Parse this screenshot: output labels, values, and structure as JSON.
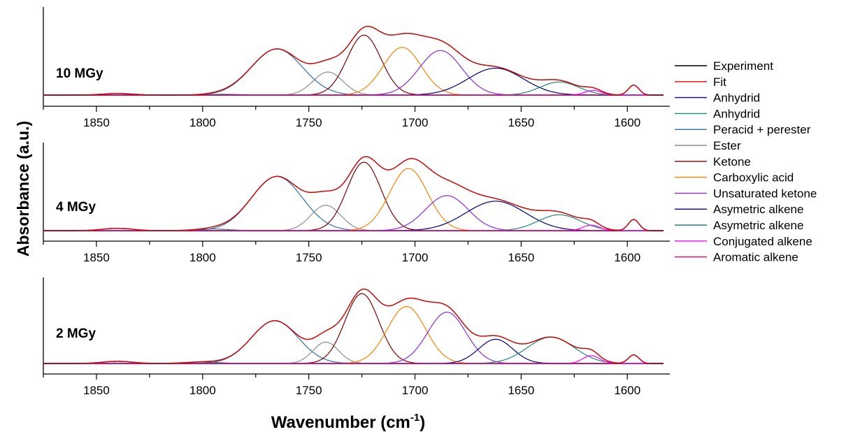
{
  "chart_data": {
    "type": "line",
    "xlabel": "Wavenumber (cm",
    "xlabel_sup": "-1",
    "xlabel_close": ")",
    "ylabel": "Absorbance (a.u.)",
    "xlim": [
      1875,
      1580
    ],
    "x_reversed": true,
    "x_ticks": [
      1850,
      1800,
      1750,
      1700,
      1650,
      1600
    ],
    "legend_position": "right",
    "legend": [
      {
        "name": "Experiment",
        "color": "#000000"
      },
      {
        "name": "Fit",
        "color": "#ff0000"
      },
      {
        "name": "Anhydrid",
        "color": "#0000cc"
      },
      {
        "name": "Anhydrid",
        "color": "#1a8a7a"
      },
      {
        "name": "Peracid + perester",
        "color": "#2f6fa8"
      },
      {
        "name": "Ester",
        "color": "#8c8c8c"
      },
      {
        "name": "Ketone",
        "color": "#7a0000"
      },
      {
        "name": "Carboxylic acid",
        "color": "#ff8000"
      },
      {
        "name": "Unsaturated ketone",
        "color": "#8a2be2"
      },
      {
        "name": "Asymetric alkene",
        "color": "#000080"
      },
      {
        "name": "Asymetric alkene",
        "color": "#1a8a7a"
      },
      {
        "name": "Conjugated alkene",
        "color": "#ff00ff"
      },
      {
        "name": "Aromatic alkene",
        "color": "#e0006a"
      }
    ],
    "panels": [
      {
        "label": "10 MGy",
        "peaks": [
          {
            "name": "Anhydrid",
            "color": "#0000cc",
            "center": 1840,
            "height": 0.02,
            "width": 7
          },
          {
            "name": "Anhydrid",
            "color": "#1a8a7a",
            "center": 1790,
            "height": 0.01,
            "width": 8
          },
          {
            "name": "Peracid + perester",
            "color": "#2f6fa8",
            "center": 1765,
            "height": 0.6,
            "width": 12
          },
          {
            "name": "Ester",
            "color": "#8c8c8c",
            "center": 1741,
            "height": 0.3,
            "width": 7
          },
          {
            "name": "Ketone",
            "color": "#7a0000",
            "center": 1724,
            "height": 0.78,
            "width": 8
          },
          {
            "name": "Carboxylic acid",
            "color": "#ff8000",
            "center": 1706,
            "height": 0.62,
            "width": 9
          },
          {
            "name": "Unsaturated ketone",
            "color": "#8a2be2",
            "center": 1688,
            "height": 0.58,
            "width": 10
          },
          {
            "name": "Asymetric alkene",
            "color": "#000080",
            "center": 1662,
            "height": 0.35,
            "width": 13
          },
          {
            "name": "Asymetric alkene",
            "color": "#1a8a7a",
            "center": 1632,
            "height": 0.17,
            "width": 9
          },
          {
            "name": "Conjugated alkene",
            "color": "#ff00ff",
            "center": 1616,
            "height": 0.06,
            "width": 4
          },
          {
            "name": "Aromatic alkene",
            "color": "#e0006a",
            "center": 1597,
            "height": 0.13,
            "width": 2.5
          }
        ]
      },
      {
        "label": "4 MGy",
        "peaks": [
          {
            "name": "Anhydrid",
            "color": "#0000cc",
            "center": 1840,
            "height": 0.03,
            "width": 7
          },
          {
            "name": "Anhydrid",
            "color": "#1a8a7a",
            "center": 1795,
            "height": 0.02,
            "width": 8
          },
          {
            "name": "Peracid + perester",
            "color": "#2f6fa8",
            "center": 1765,
            "height": 0.68,
            "width": 12
          },
          {
            "name": "Ester",
            "color": "#8c8c8c",
            "center": 1742,
            "height": 0.32,
            "width": 7
          },
          {
            "name": "Ketone",
            "color": "#7a0000",
            "center": 1724,
            "height": 0.86,
            "width": 8
          },
          {
            "name": "Carboxylic acid",
            "color": "#ff8000",
            "center": 1703,
            "height": 0.78,
            "width": 9
          },
          {
            "name": "Unsaturated ketone",
            "color": "#8a2be2",
            "center": 1685,
            "height": 0.44,
            "width": 10
          },
          {
            "name": "Asymetric alkene",
            "color": "#000080",
            "center": 1662,
            "height": 0.37,
            "width": 14
          },
          {
            "name": "Asymetric alkene",
            "color": "#1a8a7a",
            "center": 1632,
            "height": 0.2,
            "width": 10
          },
          {
            "name": "Conjugated alkene",
            "color": "#ff00ff",
            "center": 1617,
            "height": 0.07,
            "width": 4
          },
          {
            "name": "Aromatic alkene",
            "color": "#e0006a",
            "center": 1597,
            "height": 0.14,
            "width": 2.5
          }
        ]
      },
      {
        "label": "2 MGy",
        "peaks": [
          {
            "name": "Anhydrid",
            "color": "#0000cc",
            "center": 1840,
            "height": 0.03,
            "width": 7
          },
          {
            "name": "Anhydrid",
            "color": "#1a8a7a",
            "center": 1800,
            "height": 0.02,
            "width": 8
          },
          {
            "name": "Peracid + perester",
            "color": "#2f6fa8",
            "center": 1766,
            "height": 0.6,
            "width": 11
          },
          {
            "name": "Ester",
            "color": "#8c8c8c",
            "center": 1742,
            "height": 0.3,
            "width": 6
          },
          {
            "name": "Ketone",
            "color": "#7a0000",
            "center": 1725,
            "height": 0.98,
            "width": 8
          },
          {
            "name": "Carboxylic acid",
            "color": "#ff8000",
            "center": 1704,
            "height": 0.8,
            "width": 9
          },
          {
            "name": "Unsaturated ketone",
            "color": "#8a2be2",
            "center": 1685,
            "height": 0.72,
            "width": 9
          },
          {
            "name": "Asymetric alkene",
            "color": "#000080",
            "center": 1662,
            "height": 0.34,
            "width": 8
          },
          {
            "name": "Asymetric alkene",
            "color": "#1a8a7a",
            "center": 1636,
            "height": 0.37,
            "width": 11
          },
          {
            "name": "Conjugated alkene",
            "color": "#ff00ff",
            "center": 1617,
            "height": 0.11,
            "width": 4
          },
          {
            "name": "Aromatic alkene",
            "color": "#e0006a",
            "center": 1597,
            "height": 0.12,
            "width": 2.5
          }
        ]
      }
    ]
  }
}
